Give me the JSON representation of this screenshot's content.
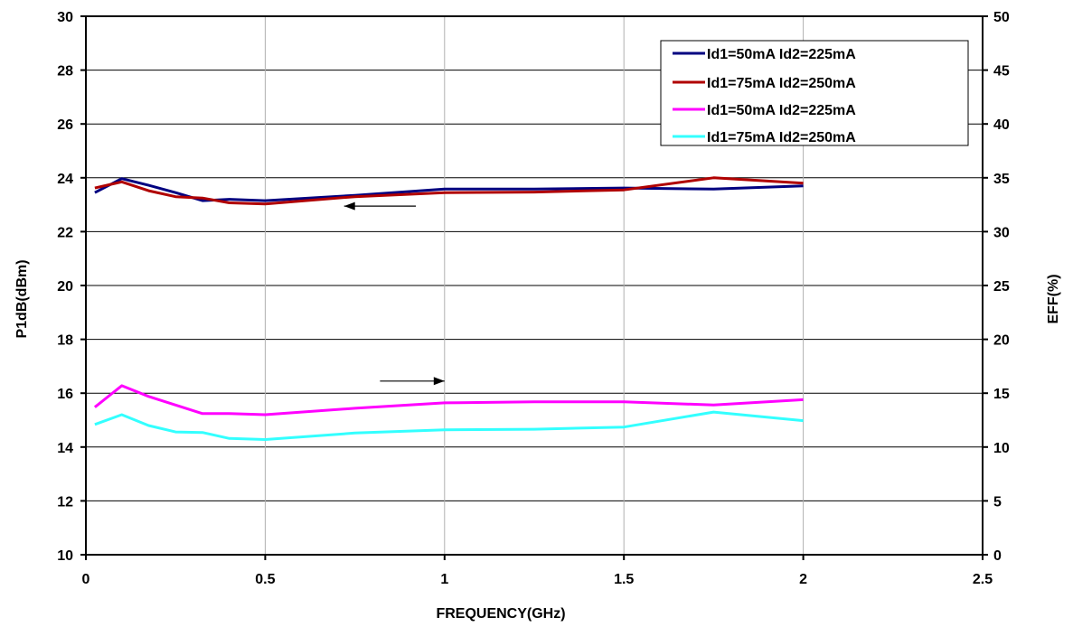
{
  "chart_data": {
    "type": "line",
    "xlabel": "FREQUENCY(GHz)",
    "ylabel": "P1dB(dBm)",
    "y2label": "EFF(%)",
    "xlim": [
      0,
      2.5
    ],
    "ylim": [
      10,
      30
    ],
    "y2lim": [
      0,
      50
    ],
    "xticks": [
      "0",
      "0.5",
      "1",
      "1.5",
      "2",
      "2.5"
    ],
    "yticks": [
      "10",
      "12",
      "14",
      "16",
      "18",
      "20",
      "22",
      "24",
      "26",
      "28",
      "30"
    ],
    "y2ticks": [
      "0",
      "5",
      "10",
      "15",
      "20",
      "25",
      "30",
      "35",
      "40",
      "45",
      "50"
    ],
    "grid": true,
    "legend_position": "top-right",
    "series": [
      {
        "name": "Id1=50mA Id2=225mA",
        "axis": "left",
        "color": "#000080",
        "x": [
          0.025,
          0.1,
          0.175,
          0.25,
          0.325,
          0.4,
          0.5,
          0.75,
          1.0,
          1.25,
          1.5,
          1.75,
          2.0
        ],
        "y": [
          23.45,
          23.97,
          23.72,
          23.45,
          23.15,
          23.2,
          23.15,
          23.35,
          23.58,
          23.58,
          23.62,
          23.58,
          23.7
        ]
      },
      {
        "name": "Id1=75mA Id2=250mA",
        "axis": "left",
        "color": "#B00000",
        "x": [
          0.025,
          0.1,
          0.175,
          0.25,
          0.325,
          0.4,
          0.5,
          0.75,
          1.0,
          1.25,
          1.5,
          1.75,
          2.0
        ],
        "y": [
          23.62,
          23.85,
          23.52,
          23.3,
          23.25,
          23.07,
          23.03,
          23.3,
          23.45,
          23.47,
          23.55,
          24.0,
          23.8
        ]
      },
      {
        "name": "Id1=50mA Id2=225mA",
        "axis": "right",
        "color": "#FF00FF",
        "x": [
          0.025,
          0.1,
          0.175,
          0.25,
          0.325,
          0.4,
          0.5,
          0.75,
          1.0,
          1.25,
          1.5,
          1.75,
          2.0
        ],
        "y": [
          13.7,
          15.7,
          14.7,
          13.9,
          13.1,
          13.1,
          13.0,
          13.6,
          14.1,
          14.2,
          14.2,
          13.9,
          14.4
        ]
      },
      {
        "name": "Id1=75mA Id2=250mA",
        "axis": "right",
        "color": "#33FFFF",
        "x": [
          0.025,
          0.1,
          0.175,
          0.25,
          0.325,
          0.4,
          0.5,
          0.75,
          1.0,
          1.25,
          1.5,
          1.75,
          2.0
        ],
        "y": [
          12.1,
          13.0,
          12.0,
          11.4,
          11.35,
          10.8,
          10.7,
          11.3,
          11.6,
          11.65,
          11.85,
          13.25,
          12.45
        ]
      }
    ],
    "annotations": [
      {
        "type": "arrow",
        "direction": "left",
        "x_from": 0.92,
        "x_to": 0.72,
        "y": 22.95,
        "axis": "left"
      },
      {
        "type": "arrow",
        "direction": "right",
        "x_from": 0.82,
        "x_to": 1.0,
        "y": 16.45,
        "axis": "left"
      }
    ]
  }
}
